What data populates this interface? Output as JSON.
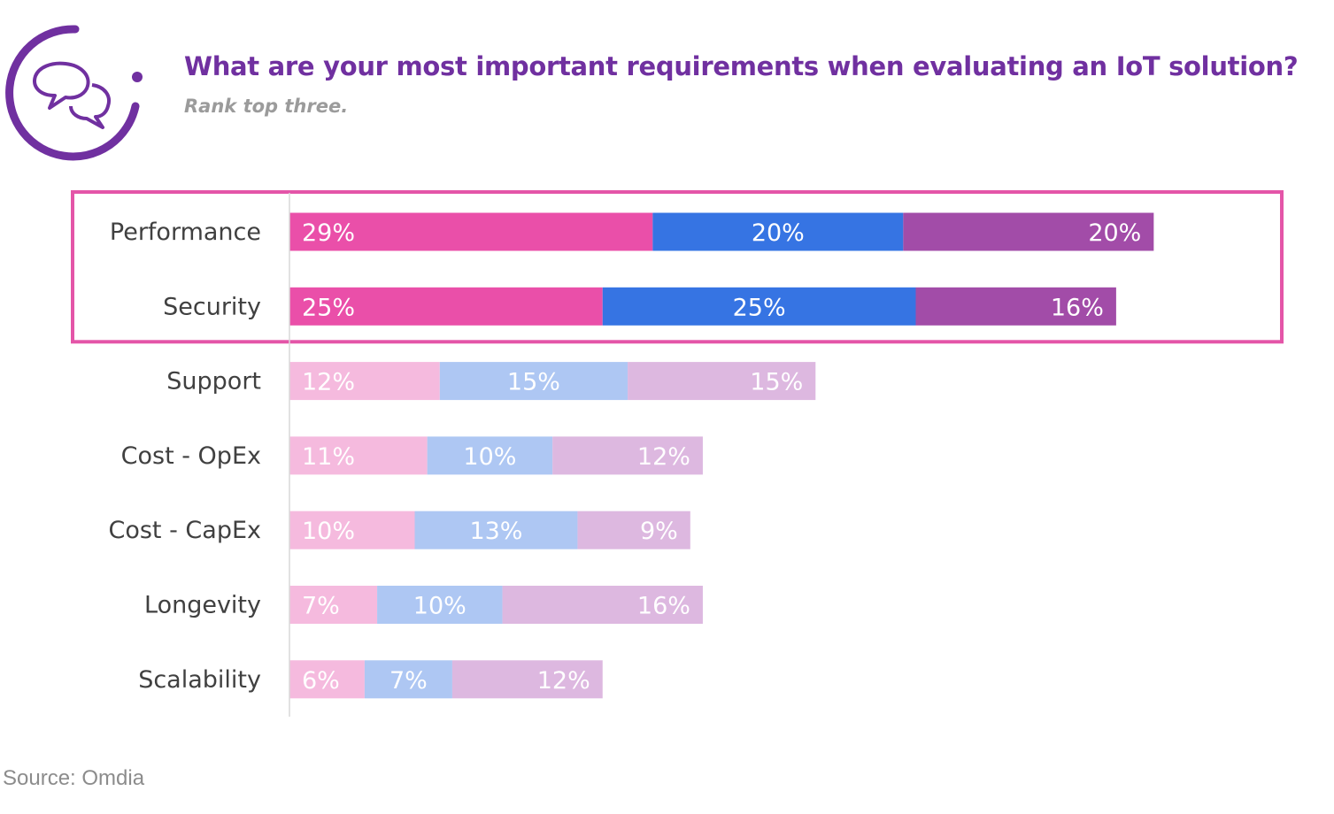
{
  "title": "What are your most important requirements when evaluating an IoT solution?",
  "subtitle": "Rank top three.",
  "source": "Source: Omdia",
  "logo_icon": "speech-bubbles-icon",
  "colors": {
    "accent_purple": "#7030a0",
    "highlight_box": "#e455a8",
    "strong": [
      "#ea4fa9",
      "#3674e3",
      "#a24ca8"
    ],
    "light": [
      "#f5bade",
      "#aec7f3",
      "#ddb8e0"
    ]
  },
  "chart_data": {
    "type": "bar",
    "orientation": "horizontal",
    "stacked": true,
    "title": "What are your most important requirements when evaluating an IoT solution?",
    "subtitle": "Rank top three.",
    "categories": [
      "Performance",
      "Security",
      "Support",
      "Cost - OpEx",
      "Cost - CapEx",
      "Longevity",
      "Scalability"
    ],
    "series": [
      {
        "values": [
          29,
          25,
          12,
          11,
          10,
          7,
          6
        ]
      },
      {
        "values": [
          20,
          25,
          15,
          10,
          13,
          10,
          7
        ]
      },
      {
        "values": [
          20,
          16,
          15,
          12,
          9,
          16,
          12
        ]
      }
    ],
    "labels": [
      [
        "29%",
        "20%",
        "20%"
      ],
      [
        "25%",
        "25%",
        "16%"
      ],
      [
        "12%",
        "15%",
        "15%"
      ],
      [
        "11%",
        "10%",
        "12%"
      ],
      [
        "10%",
        "13%",
        "9%"
      ],
      [
        "7%",
        "10%",
        "16%"
      ],
      [
        "6%",
        "7%",
        "12%"
      ]
    ],
    "highlighted_categories": [
      "Performance",
      "Security"
    ],
    "unit": "%",
    "legend": "none",
    "grid": false
  }
}
